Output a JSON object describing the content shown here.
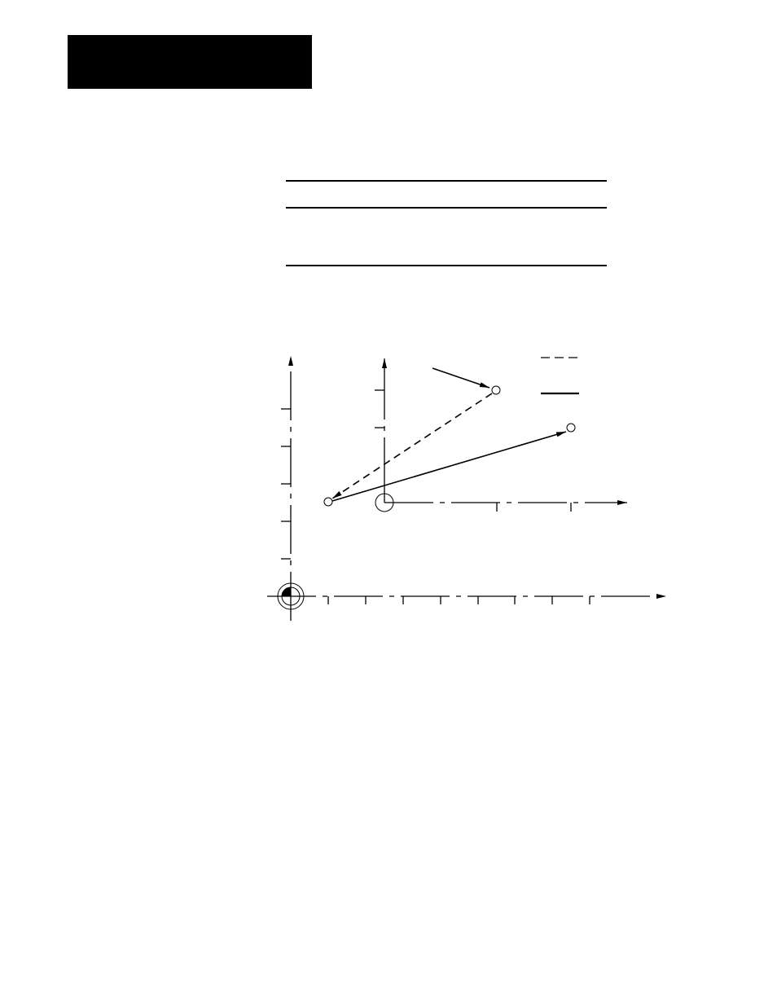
{
  "colors": {
    "ink": "#000000",
    "background": "#ffffff"
  },
  "diagram": {
    "legend": [
      {
        "style": "dashed"
      },
      {
        "style": "solid"
      }
    ],
    "icons": [
      "origin-marker-icon",
      "work-origin-circle-icon"
    ]
  }
}
